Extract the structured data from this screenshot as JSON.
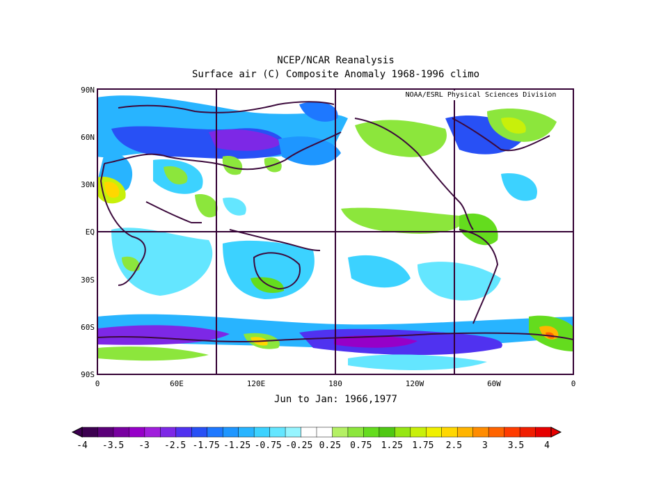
{
  "title_line1": "NCEP/NCAR Reanalysis",
  "title_line2": "Surface air (C) Composite Anomaly 1968-1996 climo",
  "credit": "NOAA/ESRL Physical Sciences Division",
  "period_label": "Jun to Jan: 1966,1977",
  "lat_labels": [
    "90N",
    "60N",
    "30N",
    "EQ",
    "30S",
    "60S",
    "90S"
  ],
  "lon_labels": [
    "0",
    "60E",
    "120E",
    "180",
    "120W",
    "60W",
    "0"
  ],
  "colorbar": {
    "labels": [
      "-4",
      "-3.5",
      "-3",
      "-2.5",
      "-1.75",
      "-1.25",
      "-0.75",
      "-0.25",
      "0.25",
      "0.75",
      "1.25",
      "1.75",
      "2.5",
      "3",
      "3.5",
      "4"
    ],
    "colors": [
      "#3c0050",
      "#5a0078",
      "#7800a0",
      "#9600c8",
      "#a01edc",
      "#7d28e6",
      "#5032f0",
      "#2850f5",
      "#1e78ff",
      "#1e96ff",
      "#28b4ff",
      "#3cd2ff",
      "#64e6ff",
      "#96f5ff",
      "#ffffff",
      "#ffffff",
      "#b4f064",
      "#8ce63c",
      "#64dc1e",
      "#50c814",
      "#96e614",
      "#c8f00a",
      "#f0f000",
      "#ffd700",
      "#ffb400",
      "#ff8c00",
      "#ff6400",
      "#ff3c00",
      "#f01e00",
      "#e60000"
    ]
  },
  "accent_colors": {
    "frame": "#330033",
    "coast": "#3c0a3c"
  }
}
